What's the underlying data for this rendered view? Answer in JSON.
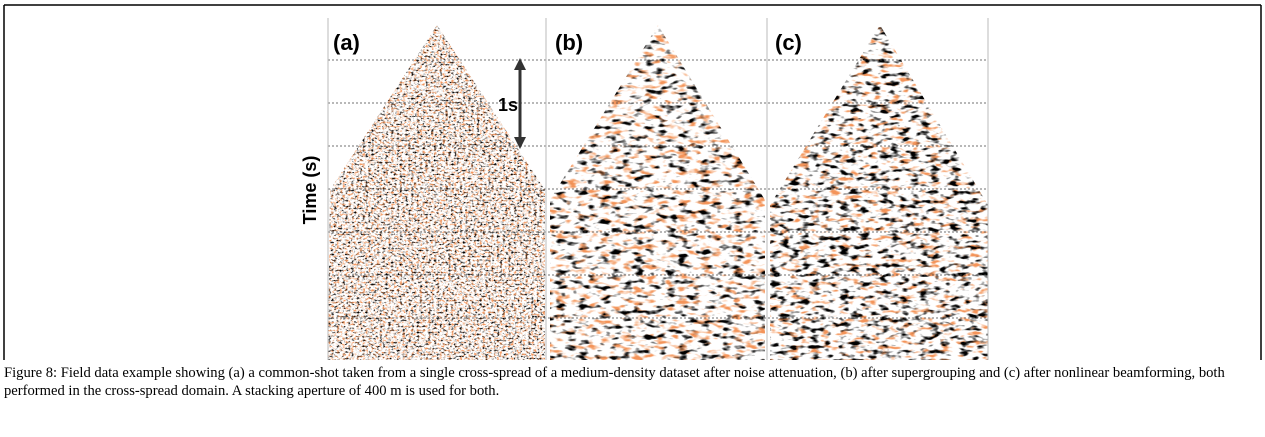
{
  "figure": {
    "panels": [
      {
        "label": "(a)"
      },
      {
        "label": "(b)"
      },
      {
        "label": "(c)"
      }
    ],
    "scale_label": "1s",
    "axis_label": "Time (s)",
    "caption": "Figure 8: Field data example showing (a) a common-shot taken from a single cross-spread of a medium-density dataset after noise attenuation, (b) after supergrouping and (c) after nonlinear beamforming, both performed in the cross-spread domain. A stacking aperture of 400 m is used for both."
  }
}
